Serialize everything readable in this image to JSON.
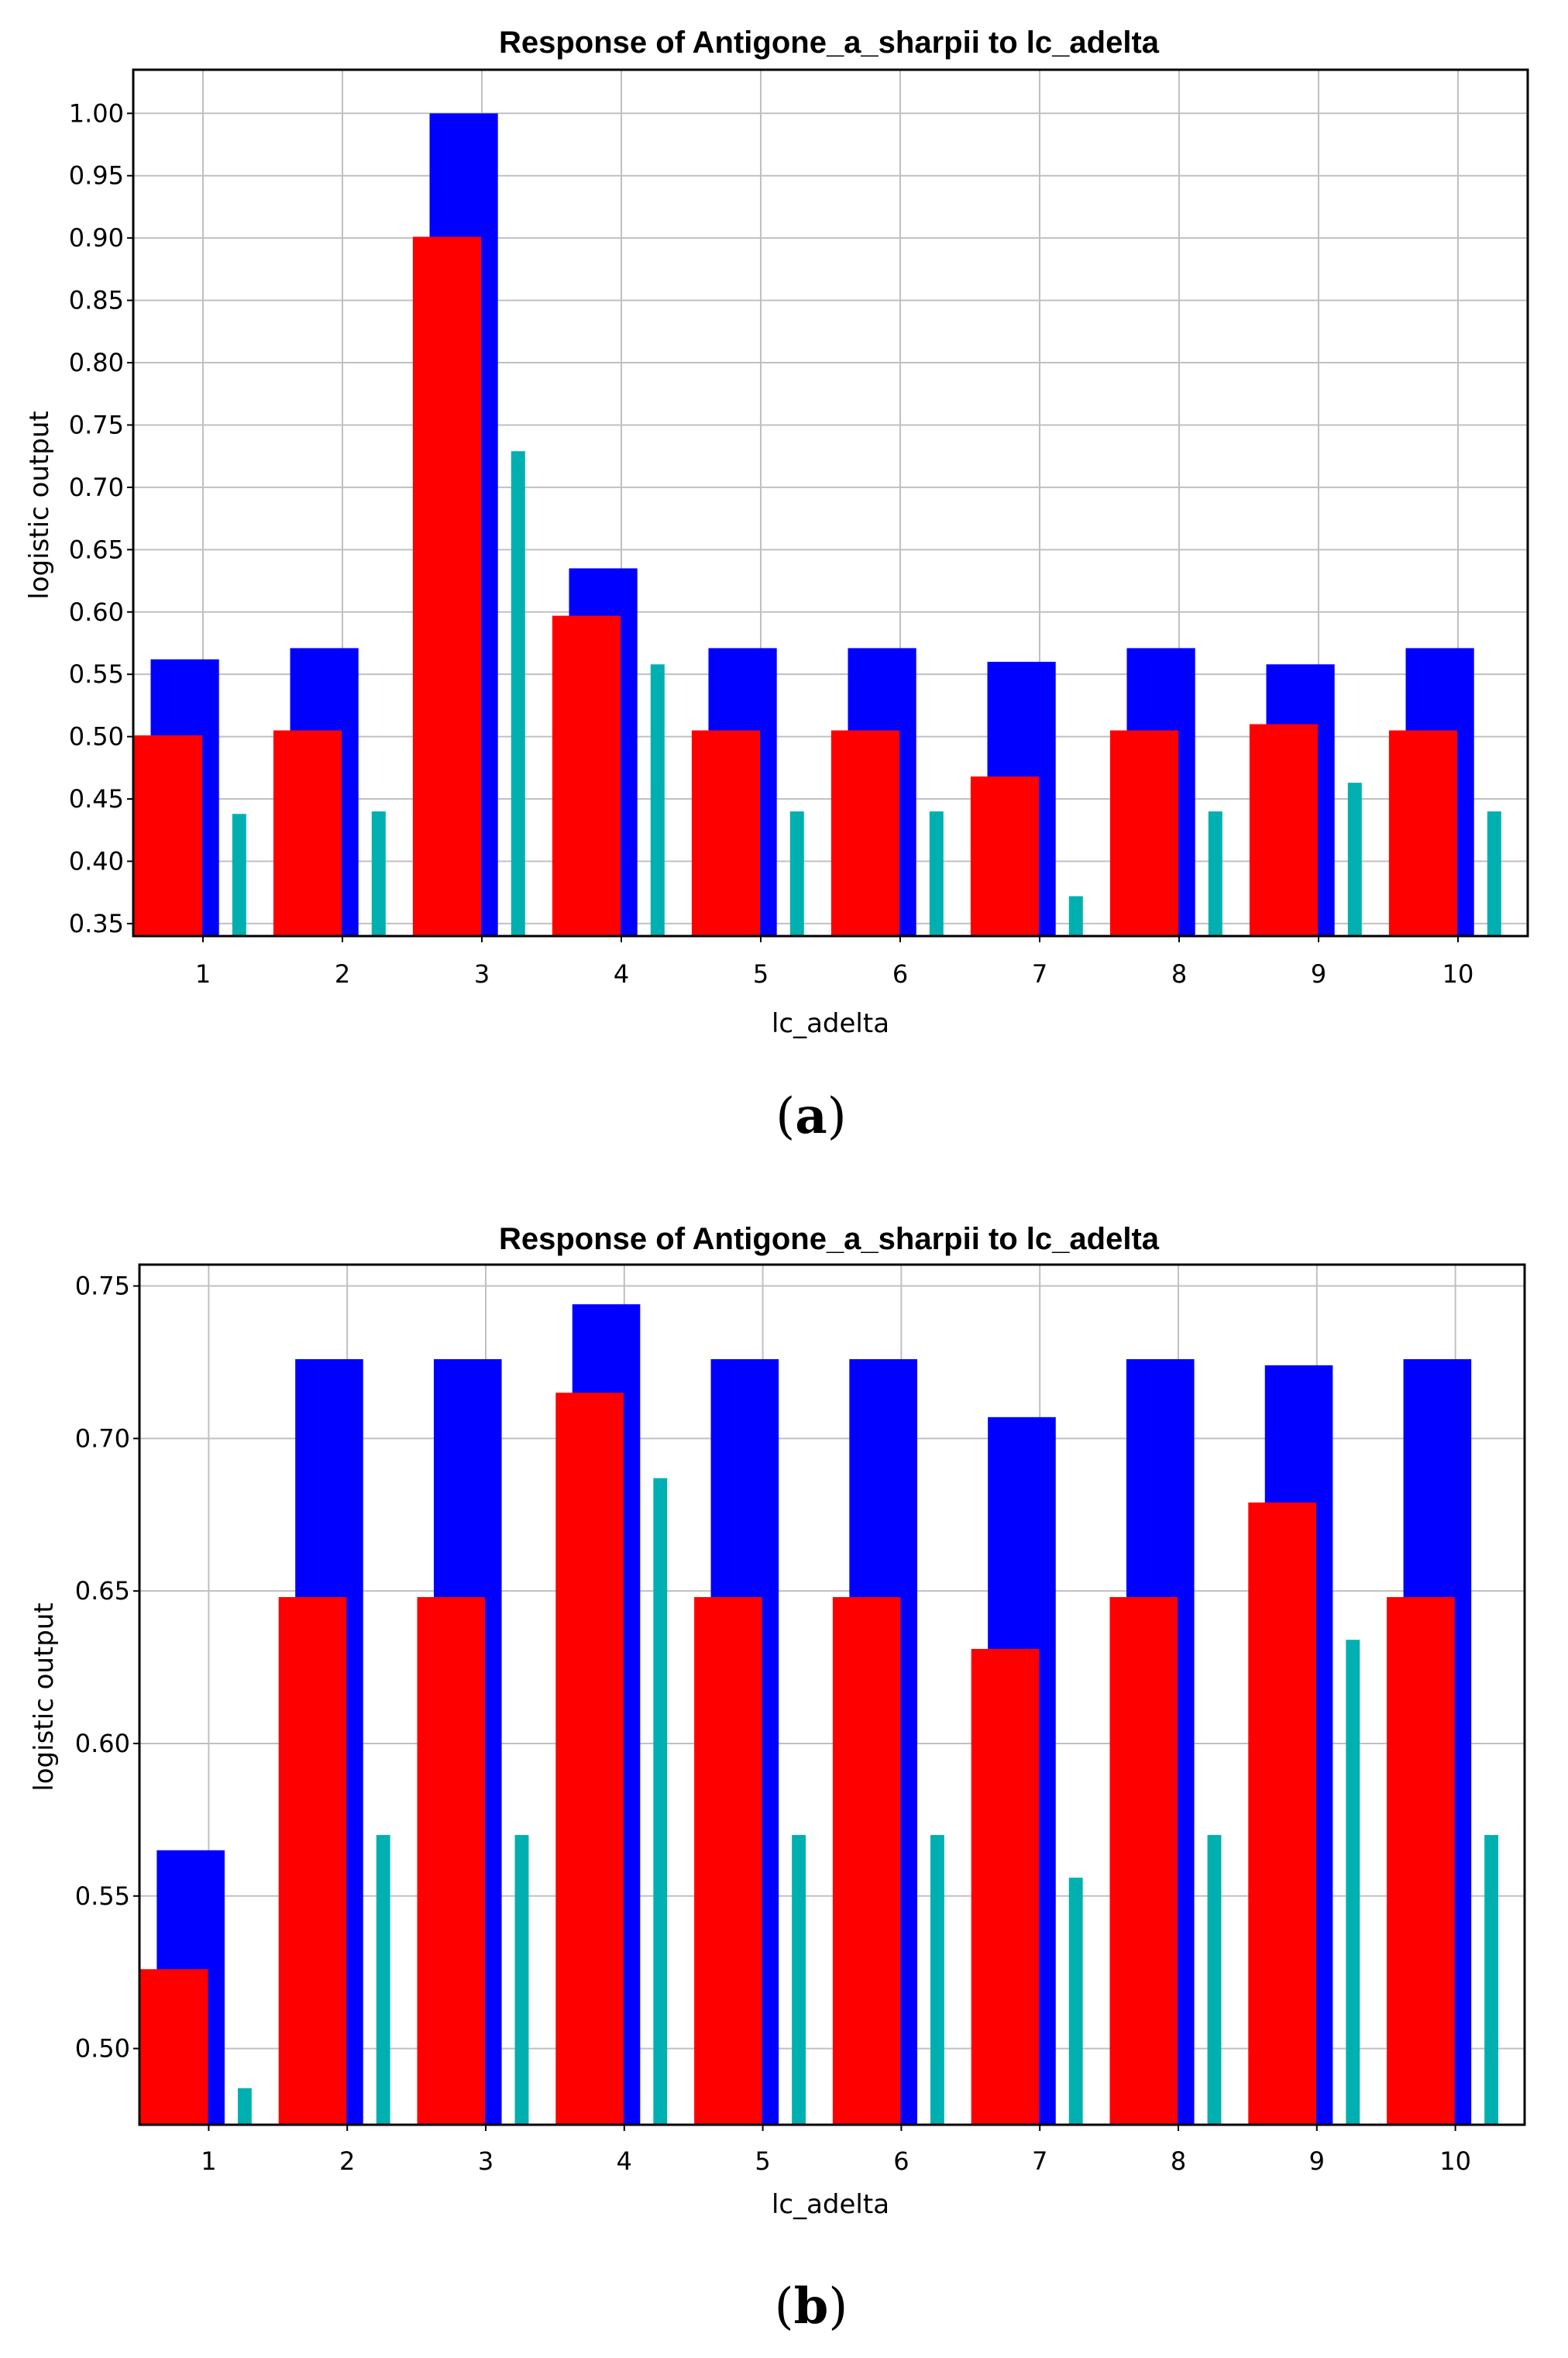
{
  "colors": {
    "series_blue": "#0000ff",
    "series_red": "#ff0000",
    "series_cyan": "#00b0b0",
    "grid": "#c0c0c0",
    "axis": "#000000"
  },
  "panels": [
    {
      "letter": "a"
    },
    {
      "letter": "b"
    }
  ],
  "chart_data": [
    {
      "type": "bar",
      "title": "Response of Antigone_a_sharpii to lc_adelta",
      "xlabel": "lc_adelta",
      "ylabel": "logistic output",
      "categories": [
        "1",
        "2",
        "3",
        "4",
        "5",
        "6",
        "7",
        "8",
        "9",
        "10"
      ],
      "ylim": [
        0.34,
        1.035
      ],
      "yticks": [
        0.35,
        0.4,
        0.45,
        0.5,
        0.55,
        0.6,
        0.65,
        0.7,
        0.75,
        0.8,
        0.85,
        0.9,
        0.95,
        1.0
      ],
      "ytick_labels": [
        "0.35",
        "0.40",
        "0.45",
        "0.50",
        "0.55",
        "0.60",
        "0.65",
        "0.70",
        "0.75",
        "0.80",
        "0.85",
        "0.90",
        "0.95",
        "1.00"
      ],
      "grid": true,
      "series": [
        {
          "values": [
            0.562,
            0.571,
            1.0,
            0.635,
            0.571,
            0.571,
            0.56,
            0.571,
            0.558,
            0.571
          ]
        },
        {
          "values": [
            0.501,
            0.505,
            0.901,
            0.597,
            0.505,
            0.505,
            0.468,
            0.505,
            0.51,
            0.505
          ]
        },
        {
          "values": [
            0.438,
            0.44,
            0.729,
            0.558,
            0.44,
            0.44,
            0.372,
            0.44,
            0.463,
            0.44
          ]
        }
      ]
    },
    {
      "type": "bar",
      "title": "Response of Antigone_a_sharpii to lc_adelta",
      "xlabel": "lc_adelta",
      "ylabel": "logistic output",
      "categories": [
        "1",
        "2",
        "3",
        "4",
        "5",
        "6",
        "7",
        "8",
        "9",
        "10"
      ],
      "ylim": [
        0.475,
        0.757
      ],
      "yticks": [
        0.5,
        0.55,
        0.6,
        0.65,
        0.7,
        0.75
      ],
      "ytick_labels": [
        "0.50",
        "0.55",
        "0.60",
        "0.65",
        "0.70",
        "0.75"
      ],
      "grid": true,
      "series": [
        {
          "values": [
            0.565,
            0.726,
            0.726,
            0.744,
            0.726,
            0.726,
            0.707,
            0.726,
            0.724,
            0.726
          ]
        },
        {
          "values": [
            0.526,
            0.648,
            0.648,
            0.715,
            0.648,
            0.648,
            0.631,
            0.648,
            0.679,
            0.648
          ]
        },
        {
          "values": [
            0.487,
            0.57,
            0.57,
            0.687,
            0.57,
            0.57,
            0.556,
            0.57,
            0.634,
            0.57
          ]
        }
      ]
    }
  ]
}
